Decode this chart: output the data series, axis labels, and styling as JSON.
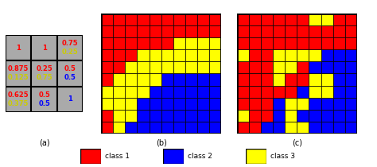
{
  "grid_a": {
    "cells": [
      [
        {
          "red": "1",
          "yellow": null,
          "blue": null
        },
        {
          "red": "1",
          "yellow": null,
          "blue": null
        },
        {
          "red": "0.75",
          "yellow": "0.25",
          "blue": null
        }
      ],
      [
        {
          "red": "0.875",
          "yellow": "0.125",
          "blue": null
        },
        {
          "red": "0.25",
          "yellow": "0.75",
          "blue": null
        },
        {
          "red": "0.5",
          "yellow": null,
          "blue": "0.5"
        }
      ],
      [
        {
          "red": "0.625",
          "yellow": "0.375",
          "blue": null
        },
        {
          "red": "0.5",
          "yellow": null,
          "blue": "0.5"
        },
        {
          "red": null,
          "yellow": null,
          "blue": "1"
        }
      ]
    ],
    "bg_color": "#aaaaaa"
  },
  "grid_b": [
    [
      "R",
      "R",
      "R",
      "R",
      "R",
      "R",
      "R",
      "R",
      "R",
      "R"
    ],
    [
      "R",
      "R",
      "R",
      "R",
      "R",
      "R",
      "R",
      "R",
      "R",
      "R"
    ],
    [
      "R",
      "R",
      "R",
      "R",
      "R",
      "R",
      "Y",
      "Y",
      "Y",
      "Y"
    ],
    [
      "R",
      "R",
      "R",
      "Y",
      "Y",
      "Y",
      "Y",
      "Y",
      "Y",
      "Y"
    ],
    [
      "R",
      "R",
      "Y",
      "Y",
      "Y",
      "Y",
      "Y",
      "Y",
      "Y",
      "Y"
    ],
    [
      "R",
      "Y",
      "Y",
      "Y",
      "Y",
      "B",
      "B",
      "B",
      "B",
      "B"
    ],
    [
      "Y",
      "Y",
      "Y",
      "Y",
      "B",
      "B",
      "B",
      "B",
      "B",
      "B"
    ],
    [
      "Y",
      "Y",
      "Y",
      "B",
      "B",
      "B",
      "B",
      "B",
      "B",
      "B"
    ],
    [
      "R",
      "Y",
      "Y",
      "B",
      "B",
      "B",
      "B",
      "B",
      "B",
      "B"
    ],
    [
      "R",
      "Y",
      "B",
      "B",
      "B",
      "B",
      "B",
      "B",
      "B",
      "B"
    ]
  ],
  "grid_c": [
    [
      "R",
      "R",
      "R",
      "R",
      "R",
      "R",
      "Y",
      "Y",
      "R",
      "R"
    ],
    [
      "R",
      "R",
      "R",
      "R",
      "R",
      "R",
      "R",
      "R",
      "R",
      "R"
    ],
    [
      "R",
      "R",
      "R",
      "R",
      "R",
      "R",
      "R",
      "R",
      "R",
      "R"
    ],
    [
      "Y",
      "R",
      "R",
      "Y",
      "Y",
      "Y",
      "Y",
      "B",
      "B",
      "B"
    ],
    [
      "R",
      "R",
      "R",
      "Y",
      "Y",
      "R",
      "B",
      "B",
      "B",
      "B"
    ],
    [
      "R",
      "R",
      "R",
      "Y",
      "R",
      "R",
      "Y",
      "Y",
      "B",
      "B"
    ],
    [
      "R",
      "R",
      "R",
      "R",
      "R",
      "B",
      "Y",
      "Y",
      "B",
      "B"
    ],
    [
      "R",
      "R",
      "R",
      "B",
      "Y",
      "Y",
      "B",
      "B",
      "B",
      "B"
    ],
    [
      "Y",
      "R",
      "R",
      "B",
      "Y",
      "B",
      "B",
      "B",
      "B",
      "B"
    ],
    [
      "R",
      "R",
      "B",
      "B",
      "Y",
      "Y",
      "B",
      "B",
      "B",
      "B"
    ]
  ],
  "colors": {
    "R": "#ff0000",
    "Y": "#ffff00",
    "B": "#0000ff"
  },
  "label_a": "(a)",
  "label_b": "(b)",
  "label_c": "(c)",
  "legend": [
    {
      "color": "#ff0000",
      "label": "class 1"
    },
    {
      "color": "#0000ff",
      "label": "class 2"
    },
    {
      "color": "#ffff00",
      "label": "class 3"
    }
  ]
}
